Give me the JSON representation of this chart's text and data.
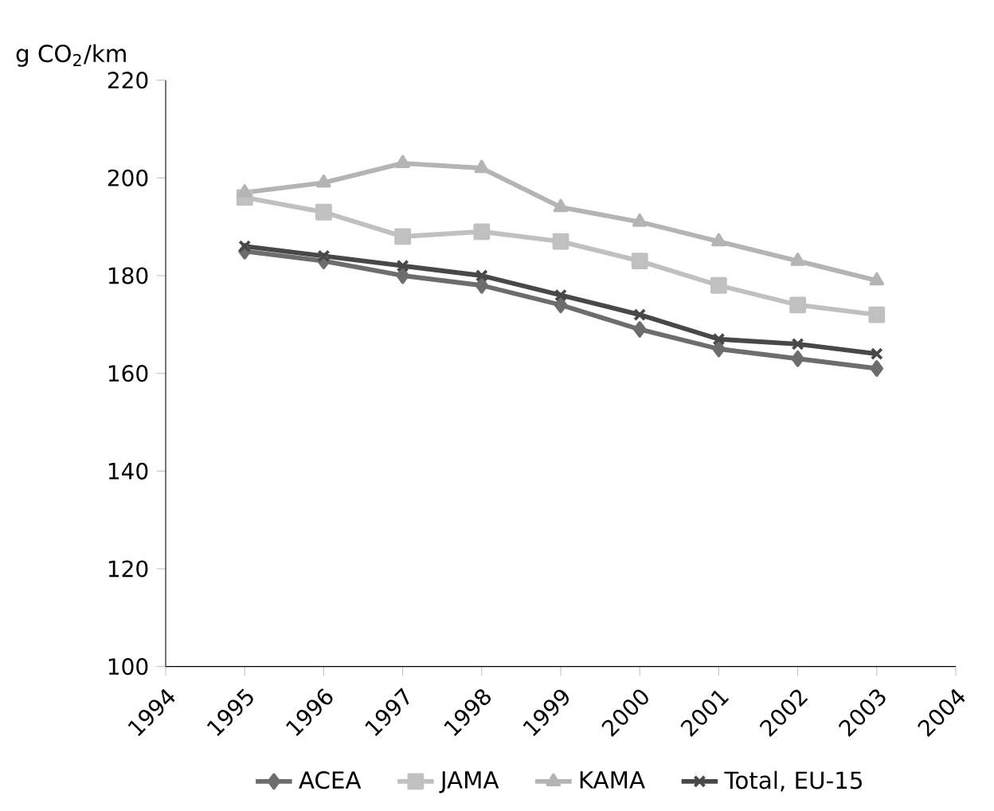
{
  "chart_data": {
    "type": "line",
    "ylabel": "g CO$_{2}$/km",
    "x": [
      1995,
      1996,
      1997,
      1998,
      1999,
      2000,
      2001,
      2002,
      2003
    ],
    "series": [
      {
        "name": "ACEA",
        "color": "#6d6d6d",
        "marker": "diamond",
        "values": [
          185,
          183,
          180,
          178,
          174,
          169,
          165,
          163,
          161
        ]
      },
      {
        "name": "JAMA",
        "color": "#c0c0c0",
        "marker": "square",
        "values": [
          196,
          193,
          188,
          189,
          187,
          183,
          178,
          174,
          172
        ]
      },
      {
        "name": "KAMA",
        "color": "#b4b4b4",
        "marker": "triangle",
        "values": [
          197,
          199,
          203,
          202,
          194,
          191,
          187,
          183,
          179
        ]
      },
      {
        "name": "Total, EU-15",
        "color": "#484848",
        "marker": "cross",
        "values": [
          186,
          184,
          182,
          180,
          176,
          172,
          167,
          166,
          164
        ]
      }
    ],
    "xlim": [
      1994,
      2004
    ],
    "xticks": [
      1994,
      1995,
      1996,
      1997,
      1998,
      1999,
      2000,
      2001,
      2002,
      2003,
      2004
    ],
    "ylim": [
      100,
      220
    ],
    "yticks": [
      100,
      120,
      140,
      160,
      180,
      200,
      220
    ],
    "grid": false,
    "legend": "bottom",
    "line_style": "solid"
  }
}
